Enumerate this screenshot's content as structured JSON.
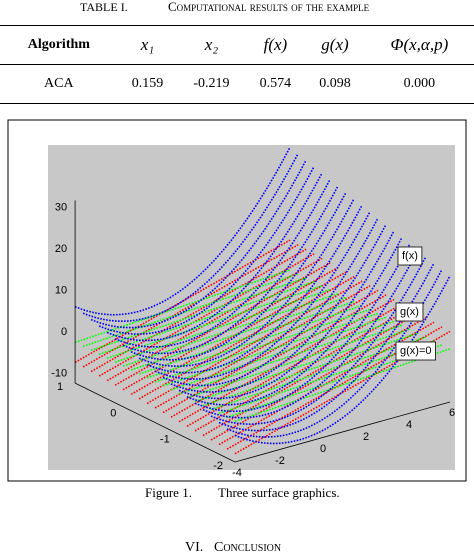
{
  "table": {
    "label": "TABLE I.",
    "title": "Computational results of the example",
    "header": [
      "Algorithm",
      "x₁",
      "x₂",
      "f(x)",
      "g(x)",
      "Φ(x,α,p)"
    ],
    "rows": [
      [
        "ACA",
        "0.159",
        "-0.219",
        "0.574",
        "0.098",
        "0.000"
      ]
    ]
  },
  "figure": {
    "legend": [
      "f(x)",
      "g(x)",
      "g(x)=0"
    ],
    "axes": {
      "z": {
        "ticks": [
          -10,
          0,
          10,
          20,
          30
        ]
      },
      "y": {
        "ticks": [
          -2,
          -1,
          0,
          1
        ]
      },
      "x": {
        "ticks": [
          -4,
          -2,
          0,
          2,
          4,
          6
        ]
      }
    },
    "caption_label": "Figure 1.",
    "caption": "Three surface graphics."
  },
  "section": {
    "number": "VI.",
    "title": "Conclusion"
  }
}
